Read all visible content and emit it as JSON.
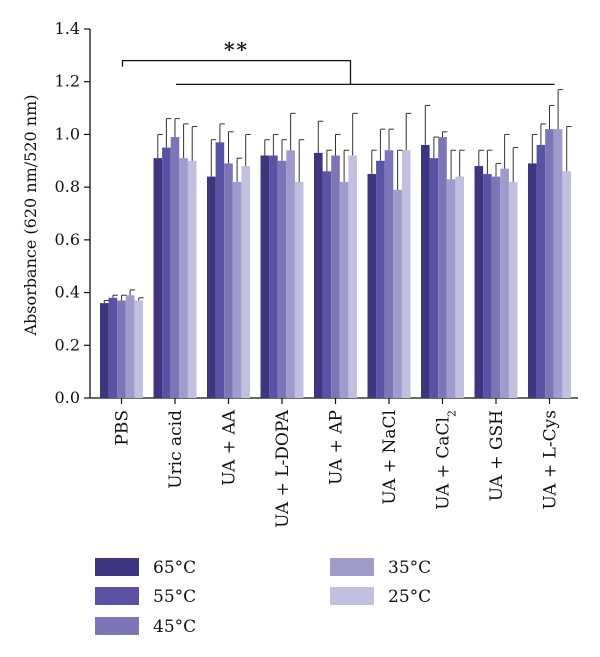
{
  "chart_data": {
    "type": "bar",
    "title": "",
    "xlabel": "",
    "ylabel": "Absorbance (620 nm/520 nm)",
    "ylim": [
      0,
      1.4
    ],
    "yticks": [
      "0.0",
      "0.2",
      "0.4",
      "0.6",
      "0.8",
      "1.0",
      "1.2",
      "1.4"
    ],
    "categories": [
      "PBS",
      "Uric acid",
      "UA + AA",
      "UA + L-DOPA",
      "UA + AP",
      "UA + NaCl",
      "UA + CaCl",
      "UA + GSH",
      "UA + L-Cys"
    ],
    "category_subscripts": [
      "",
      "",
      "",
      "",
      "",
      "",
      "2",
      "",
      ""
    ],
    "series": [
      {
        "name": "65°C",
        "color": "#3d3580",
        "values": [
          0.36,
          0.91,
          0.84,
          0.92,
          0.93,
          0.85,
          0.96,
          0.88,
          0.89
        ],
        "errors": [
          0.01,
          0.09,
          0.14,
          0.06,
          0.12,
          0.09,
          0.15,
          0.06,
          0.11
        ]
      },
      {
        "name": "55°C",
        "color": "#5a52a2",
        "values": [
          0.38,
          0.95,
          0.97,
          0.92,
          0.86,
          0.9,
          0.91,
          0.85,
          0.96
        ],
        "errors": [
          0.01,
          0.11,
          0.07,
          0.08,
          0.08,
          0.12,
          0.08,
          0.09,
          0.08
        ]
      },
      {
        "name": "45°C",
        "color": "#7c76b8",
        "values": [
          0.37,
          0.99,
          0.89,
          0.9,
          0.92,
          0.94,
          0.99,
          0.84,
          1.02
        ],
        "errors": [
          0.02,
          0.07,
          0.12,
          0.08,
          0.08,
          0.08,
          0.02,
          0.05,
          0.09
        ]
      },
      {
        "name": "35°C",
        "color": "#9f9bcc",
        "values": [
          0.39,
          0.91,
          0.82,
          0.94,
          0.82,
          0.79,
          0.83,
          0.87,
          1.02
        ],
        "errors": [
          0.02,
          0.13,
          0.09,
          0.14,
          0.12,
          0.15,
          0.11,
          0.13,
          0.15
        ]
      },
      {
        "name": "25°C",
        "color": "#c2c0df",
        "values": [
          0.37,
          0.9,
          0.88,
          0.82,
          0.92,
          0.94,
          0.84,
          0.82,
          0.86
        ],
        "errors": [
          0.01,
          0.13,
          0.12,
          0.16,
          0.16,
          0.14,
          0.1,
          0.13,
          0.17
        ]
      }
    ],
    "annotations": [
      {
        "text": "**",
        "type": "significance-bracket",
        "from_category": "PBS",
        "to_category": "UA + L-Cys",
        "level": 1.28,
        "join_level": 1.19
      }
    ],
    "legend": {
      "placement": "bottom",
      "columns": 2
    },
    "grid": false
  }
}
